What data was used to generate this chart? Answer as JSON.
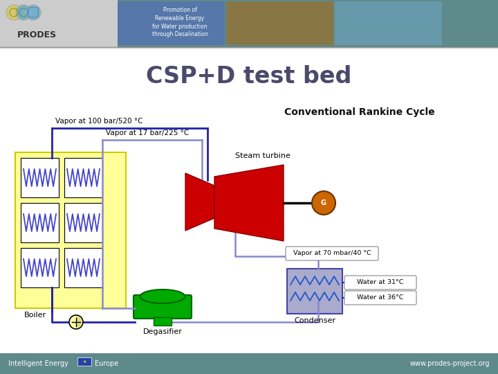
{
  "title": "CSP+D test bed",
  "subtitle": "Conventional Rankine Cycle",
  "bg_color": "#f0f0f0",
  "main_bg": "#ffffff",
  "header_bg": "#5f8a8b",
  "footer_bg": "#5f8a8b",
  "title_color": "#4a4a6a",
  "subtitle_color": "#111111",
  "label_vapor100": "Vapor at 100 bar/520 °C",
  "label_vapor17": "Vapor at 17 bar/225 °C",
  "label_steam_turbine": "Steam turbine",
  "label_vapor70": "Vapor at 70 mbar/40 °C",
  "label_water31": "Water at 31°C",
  "label_water36": "Water at 36°C",
  "label_condenser": "Condenser",
  "label_boiler": "Boiler",
  "label_degasifier": "Degasifier",
  "label_G": "G",
  "footer_left": "Intelligent Energy",
  "footer_europe": "Europe",
  "footer_right": "www.prodes-project.org",
  "prodes_text": "PRODES",
  "promotion_text": "Promotion of\nRenewable Energy\nfor Water production\nthrough Desalination",
  "line_color_blue": "#4444bb",
  "line_color_dark_blue": "#2222aa",
  "pipe_inner": "#8888cc",
  "boiler_yellow": "#ffff99",
  "boiler_border": "#cccc00",
  "turbine_red": "#cc0000",
  "generator_color": "#cc6600",
  "condenser_fill": "#aaaacc",
  "condenser_border": "#4444aa",
  "condenser_zz": "#2255cc",
  "degasifier_green": "#00aa00",
  "coil_color": "#4444cc",
  "pump_fill": "#ffffaa",
  "water_box_fill": "white",
  "water_box_border": "#888888",
  "vapor_box_fill": "white",
  "vapor_box_border": "#888888"
}
